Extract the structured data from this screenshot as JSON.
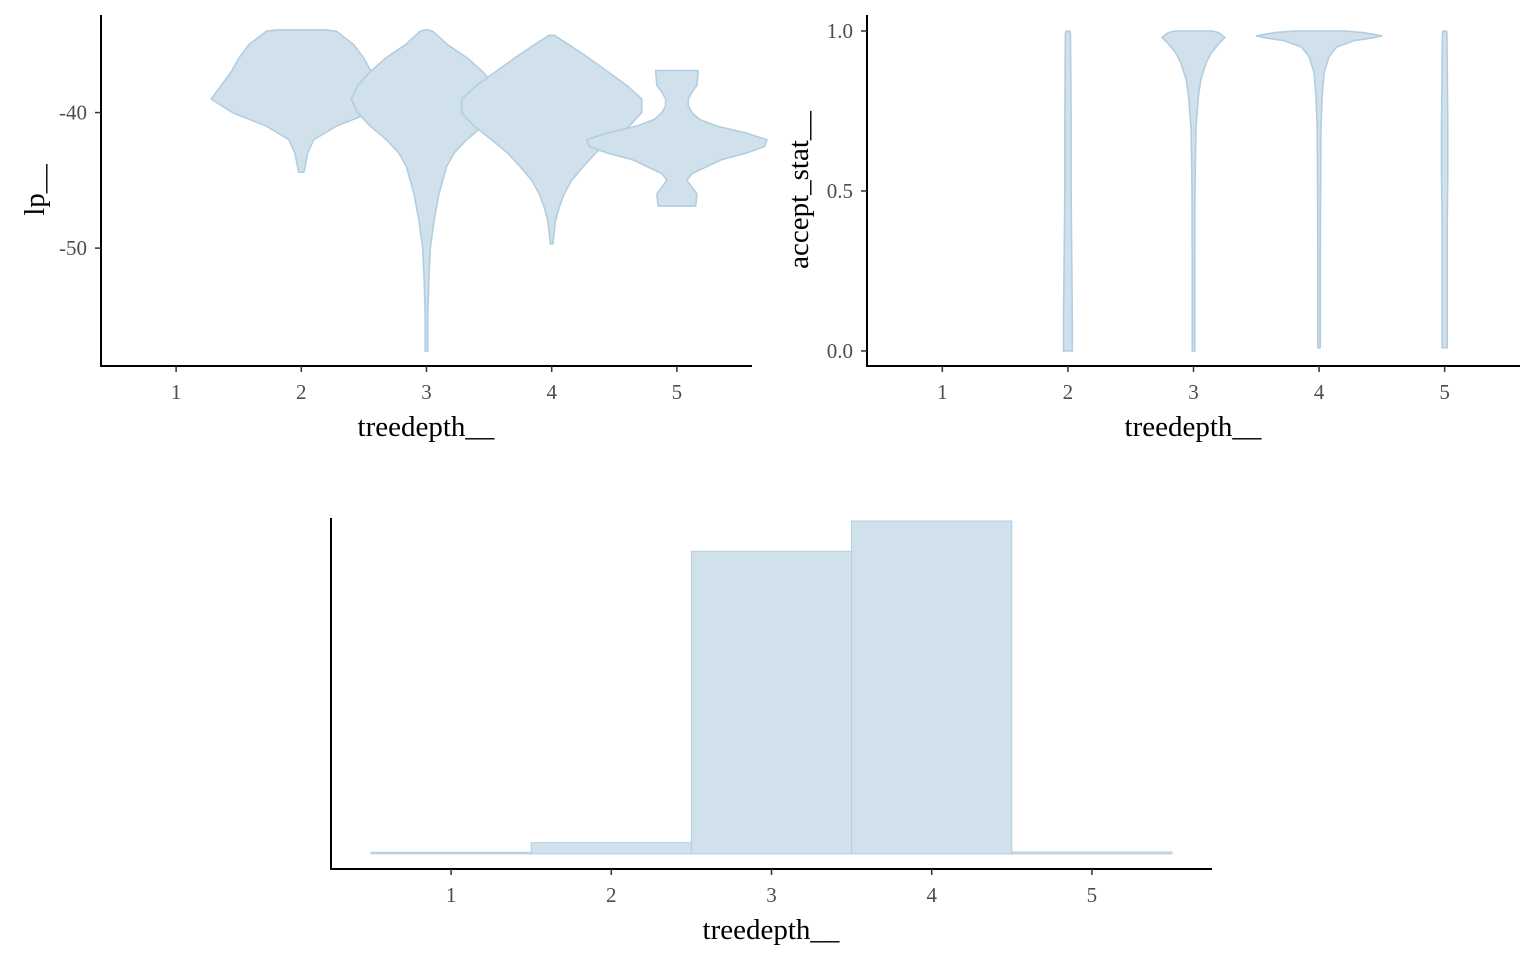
{
  "colors": {
    "fill": "#d1e1ec",
    "outline": "#b3cde0",
    "axis": "#000000",
    "tick_text": "#4d4d4d"
  },
  "chart_data": [
    {
      "id": "violin-lp",
      "type": "violin",
      "xlabel": "treedepth__",
      "ylabel": "lp__",
      "x_ticks": [
        "1",
        "2",
        "3",
        "4",
        "5"
      ],
      "y_ticks": [
        {
          "value": -40,
          "label": "-40"
        },
        {
          "value": -50,
          "label": "-50"
        }
      ],
      "xlim": [
        0.4,
        5.6
      ],
      "ylim": [
        -58.7,
        -32.8
      ],
      "grid": false,
      "violins": [
        {
          "x": 2,
          "profile": [
            [
              -44.4,
              0.02
            ],
            [
              -44,
              0.03
            ],
            [
              -43,
              0.05
            ],
            [
              -42,
              0.1
            ],
            [
              -41,
              0.28
            ],
            [
              -40,
              0.55
            ],
            [
              -39,
              0.72
            ],
            [
              -38,
              0.64
            ],
            [
              -37,
              0.56
            ],
            [
              -36,
              0.5
            ],
            [
              -35,
              0.42
            ],
            [
              -34,
              0.28
            ],
            [
              -33.9,
              0.2
            ]
          ]
        },
        {
          "x": 3,
          "profile": [
            [
              -57.6,
              0.01
            ],
            [
              -55,
              0.01
            ],
            [
              -52,
              0.02
            ],
            [
              -50,
              0.03
            ],
            [
              -48,
              0.06
            ],
            [
              -46,
              0.1
            ],
            [
              -44,
              0.16
            ],
            [
              -43,
              0.22
            ],
            [
              -42,
              0.32
            ],
            [
              -41,
              0.45
            ],
            [
              -40,
              0.55
            ],
            [
              -39,
              0.6
            ],
            [
              -38,
              0.55
            ],
            [
              -37,
              0.45
            ],
            [
              -36,
              0.33
            ],
            [
              -35,
              0.17
            ],
            [
              -34,
              0.05
            ],
            [
              -33.9,
              0.01
            ]
          ]
        },
        {
          "x": 4,
          "profile": [
            [
              -49.7,
              0.01
            ],
            [
              -48,
              0.03
            ],
            [
              -47,
              0.06
            ],
            [
              -46,
              0.1
            ],
            [
              -45,
              0.16
            ],
            [
              -44,
              0.25
            ],
            [
              -43,
              0.35
            ],
            [
              -42,
              0.48
            ],
            [
              -41,
              0.62
            ],
            [
              -40,
              0.72
            ],
            [
              -39,
              0.72
            ],
            [
              -38,
              0.6
            ],
            [
              -37,
              0.45
            ],
            [
              -36,
              0.3
            ],
            [
              -35,
              0.14
            ],
            [
              -34.3,
              0.02
            ]
          ]
        },
        {
          "x": 5,
          "profile": [
            [
              -46.9,
              0.15
            ],
            [
              -46,
              0.16
            ],
            [
              -45.5,
              0.12
            ],
            [
              -45,
              0.08
            ],
            [
              -44.5,
              0.12
            ],
            [
              -43.5,
              0.35
            ],
            [
              -43,
              0.55
            ],
            [
              -42.5,
              0.7
            ],
            [
              -42,
              0.72
            ],
            [
              -41.5,
              0.55
            ],
            [
              -41,
              0.32
            ],
            [
              -40.5,
              0.18
            ],
            [
              -40,
              0.12
            ],
            [
              -39.5,
              0.09
            ],
            [
              -39,
              0.09
            ],
            [
              -38.5,
              0.12
            ],
            [
              -38,
              0.16
            ],
            [
              -36.9,
              0.17
            ]
          ]
        }
      ]
    },
    {
      "id": "violin-accept",
      "type": "violin",
      "xlabel": "treedepth__",
      "ylabel": "accept_stat__",
      "x_ticks": [
        "1",
        "2",
        "3",
        "4",
        "5"
      ],
      "y_ticks": [
        {
          "value": 0,
          "label": "0.0"
        },
        {
          "value": 0.5,
          "label": "0.5"
        },
        {
          "value": 1,
          "label": "1.0"
        }
      ],
      "xlim": [
        0.4,
        5.6
      ],
      "ylim": [
        -0.047,
        1.05
      ],
      "grid": false,
      "violins": [
        {
          "x": 2,
          "profile": [
            [
              0.0,
              0.035
            ],
            [
              0.1,
              0.035
            ],
            [
              0.3,
              0.03
            ],
            [
              0.5,
              0.025
            ],
            [
              0.7,
              0.025
            ],
            [
              0.9,
              0.022
            ],
            [
              0.99,
              0.02
            ],
            [
              1.0,
              0.015
            ]
          ]
        },
        {
          "x": 3,
          "profile": [
            [
              0.0,
              0.01
            ],
            [
              0.3,
              0.01
            ],
            [
              0.5,
              0.012
            ],
            [
              0.6,
              0.015
            ],
            [
              0.7,
              0.02
            ],
            [
              0.75,
              0.03
            ],
            [
              0.8,
              0.04
            ],
            [
              0.85,
              0.06
            ],
            [
              0.9,
              0.1
            ],
            [
              0.93,
              0.14
            ],
            [
              0.96,
              0.2
            ],
            [
              0.98,
              0.25
            ],
            [
              0.995,
              0.2
            ],
            [
              1.0,
              0.15
            ]
          ]
        },
        {
          "x": 4,
          "profile": [
            [
              0.01,
              0.01
            ],
            [
              0.3,
              0.01
            ],
            [
              0.5,
              0.012
            ],
            [
              0.7,
              0.015
            ],
            [
              0.8,
              0.025
            ],
            [
              0.87,
              0.04
            ],
            [
              0.92,
              0.08
            ],
            [
              0.95,
              0.14
            ],
            [
              0.97,
              0.28
            ],
            [
              0.98,
              0.45
            ],
            [
              0.985,
              0.5
            ],
            [
              0.995,
              0.35
            ],
            [
              1.0,
              0.2
            ]
          ]
        },
        {
          "x": 5,
          "profile": [
            [
              0.01,
              0.02
            ],
            [
              0.2,
              0.02
            ],
            [
              0.4,
              0.02
            ],
            [
              0.55,
              0.025
            ],
            [
              0.7,
              0.025
            ],
            [
              0.9,
              0.02
            ],
            [
              0.99,
              0.018
            ],
            [
              1.0,
              0.015
            ]
          ]
        }
      ]
    },
    {
      "id": "hist-treedepth",
      "type": "bar",
      "xlabel": "treedepth__",
      "ylabel": "",
      "categories": [
        "1",
        "2",
        "3",
        "4",
        "5"
      ],
      "values": [
        0,
        37,
        1000,
        1100,
        6
      ],
      "ylim": [
        -50,
        1110
      ],
      "grid": false
    }
  ]
}
